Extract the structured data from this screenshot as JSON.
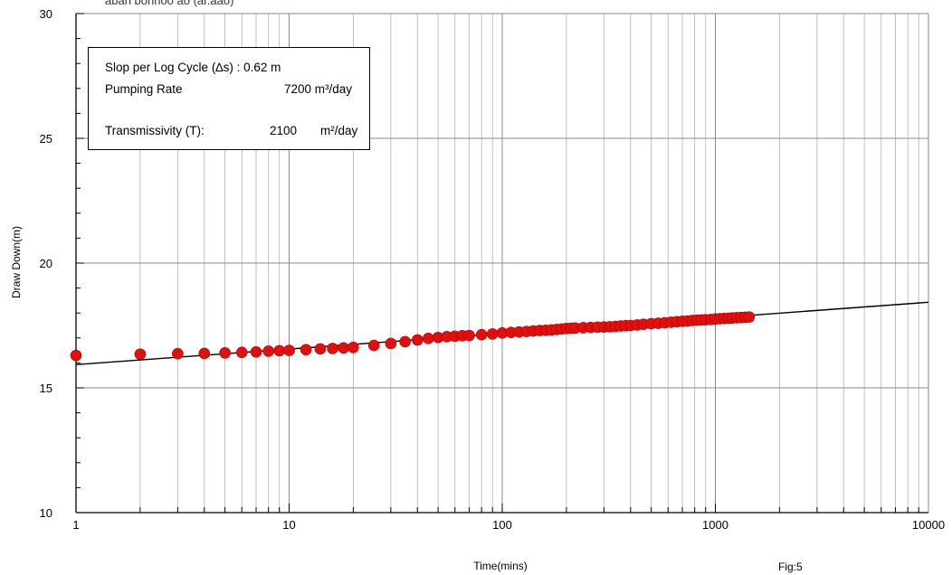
{
  "header_fragment": "aban bonnoo ao (ar.aao)",
  "legend": {
    "slope_label": "Slop per Log Cycle (∆s) : 0.62 m",
    "pumping_label": "Pumping Rate",
    "pumping_value": "7200 m³/day",
    "trans_label": "Transmissivity (T):",
    "trans_value": "2100",
    "trans_unit": "m²/day"
  },
  "figure_label": "Fig:5",
  "chart_data": {
    "type": "scatter",
    "title": "",
    "xlabel": "Time(mins)",
    "ylabel": "Draw Down(m)",
    "x_scale": "log",
    "xlim": [
      1,
      10000
    ],
    "ylim": [
      10,
      30
    ],
    "x_ticks": [
      1,
      10,
      100,
      1000,
      10000
    ],
    "x_tick_labels": [
      "1",
      "10",
      "100",
      "1000",
      "10000"
    ],
    "y_ticks": [
      10,
      15,
      20,
      25,
      30
    ],
    "y_tick_labels": [
      "10",
      "15",
      "20",
      "25",
      "30"
    ],
    "grid": true,
    "series": [
      {
        "kind": "points",
        "color": "#e01010",
        "points": [
          [
            1,
            16.3
          ],
          [
            2,
            16.35
          ],
          [
            3,
            16.37
          ],
          [
            4,
            16.38
          ],
          [
            5,
            16.4
          ],
          [
            6,
            16.42
          ],
          [
            7,
            16.44
          ],
          [
            8,
            16.47
          ],
          [
            9,
            16.49
          ],
          [
            10,
            16.5
          ],
          [
            12,
            16.53
          ],
          [
            14,
            16.56
          ],
          [
            16,
            16.58
          ],
          [
            18,
            16.6
          ],
          [
            20,
            16.62
          ],
          [
            25,
            16.7
          ],
          [
            30,
            16.78
          ],
          [
            35,
            16.85
          ],
          [
            40,
            16.92
          ],
          [
            45,
            16.98
          ],
          [
            50,
            17.02
          ],
          [
            55,
            17.05
          ],
          [
            60,
            17.07
          ],
          [
            65,
            17.09
          ],
          [
            70,
            17.1
          ],
          [
            80,
            17.13
          ],
          [
            90,
            17.16
          ],
          [
            100,
            17.2
          ],
          [
            110,
            17.22
          ],
          [
            120,
            17.24
          ],
          [
            130,
            17.26
          ],
          [
            140,
            17.28
          ],
          [
            150,
            17.3
          ],
          [
            160,
            17.31
          ],
          [
            170,
            17.32
          ],
          [
            180,
            17.34
          ],
          [
            190,
            17.36
          ],
          [
            200,
            17.38
          ],
          [
            210,
            17.39
          ],
          [
            220,
            17.4
          ],
          [
            240,
            17.41
          ],
          [
            260,
            17.42
          ],
          [
            280,
            17.43
          ],
          [
            300,
            17.44
          ],
          [
            320,
            17.45
          ],
          [
            340,
            17.46
          ],
          [
            360,
            17.48
          ],
          [
            380,
            17.49
          ],
          [
            400,
            17.5
          ],
          [
            430,
            17.52
          ],
          [
            460,
            17.55
          ],
          [
            500,
            17.57
          ],
          [
            540,
            17.59
          ],
          [
            580,
            17.61
          ],
          [
            620,
            17.63
          ],
          [
            660,
            17.65
          ],
          [
            700,
            17.67
          ],
          [
            740,
            17.68
          ],
          [
            780,
            17.7
          ],
          [
            820,
            17.71
          ],
          [
            860,
            17.72
          ],
          [
            900,
            17.73
          ],
          [
            950,
            17.74
          ],
          [
            1000,
            17.76
          ],
          [
            1050,
            17.77
          ],
          [
            1100,
            17.78
          ],
          [
            1150,
            17.79
          ],
          [
            1200,
            17.8
          ],
          [
            1260,
            17.81
          ],
          [
            1320,
            17.82
          ],
          [
            1380,
            17.83
          ],
          [
            1440,
            17.84
          ]
        ]
      },
      {
        "kind": "fit-line",
        "color": "#000000",
        "points": [
          [
            1,
            15.93
          ],
          [
            10000,
            18.43
          ]
        ]
      }
    ]
  }
}
